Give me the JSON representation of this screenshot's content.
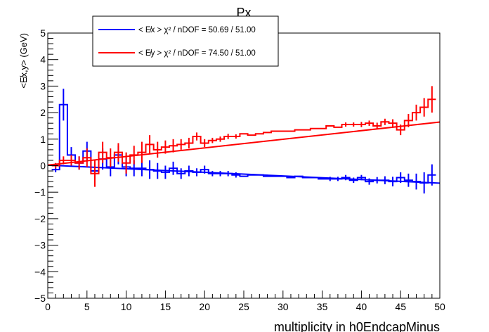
{
  "chart_data": {
    "type": "line",
    "title": "Px",
    "xlabel": "multiplicity in h0EndcapMinus",
    "ylabel": "<E̸x,y> (GeV)",
    "xlim": [
      0,
      50
    ],
    "ylim": [
      -5,
      5
    ],
    "xticks": [
      "0",
      "5",
      "10",
      "15",
      "20",
      "25",
      "30",
      "35",
      "40",
      "45",
      "50"
    ],
    "yticks": [
      "−5",
      "−4",
      "−3",
      "−2",
      "−1",
      "0",
      "1",
      "2",
      "3",
      "4",
      "5"
    ],
    "legend_position": "top-left",
    "series": [
      {
        "name": "< E̸x >  χ² / nDOF = 50.69 / 51.00",
        "color": "#0000ff",
        "fit": {
          "slope": -0.0136,
          "intercept": 0.02
        },
        "x": [
          1,
          2,
          3,
          4,
          5,
          6,
          7,
          8,
          9,
          10,
          11,
          12,
          13,
          14,
          15,
          16,
          17,
          18,
          19,
          20,
          21,
          22,
          23,
          24,
          25,
          26,
          27,
          28,
          29,
          30,
          31,
          32,
          33,
          34,
          35,
          36,
          37,
          38,
          39,
          40,
          41,
          42,
          43,
          44,
          45,
          46,
          47,
          48,
          49
        ],
        "y": [
          -0.15,
          2.3,
          0.4,
          0.1,
          0.55,
          -0.2,
          0.25,
          -0.05,
          0.4,
          -0.05,
          -0.1,
          -0.1,
          -0.15,
          -0.2,
          -0.25,
          -0.1,
          -0.3,
          -0.2,
          -0.25,
          -0.15,
          -0.3,
          -0.3,
          -0.3,
          -0.35,
          -0.4,
          -0.35,
          -0.35,
          -0.4,
          -0.4,
          -0.4,
          -0.45,
          -0.4,
          -0.45,
          -0.45,
          -0.5,
          -0.5,
          -0.5,
          -0.45,
          -0.55,
          -0.45,
          -0.6,
          -0.55,
          -0.55,
          -0.6,
          -0.45,
          -0.55,
          -0.6,
          -0.65,
          -0.35
        ],
        "err": [
          0.1,
          0.6,
          0.3,
          0.25,
          0.35,
          0.3,
          0.4,
          0.35,
          0.35,
          0.35,
          0.3,
          0.3,
          0.35,
          0.3,
          0.25,
          0.25,
          0.2,
          0.2,
          0.15,
          0.15,
          0.1,
          0.1,
          0.1,
          0.1,
          0.05,
          0.05,
          0.05,
          0.05,
          0.05,
          0.05,
          0.05,
          0.05,
          0.05,
          0.05,
          0.05,
          0.08,
          0.08,
          0.1,
          0.1,
          0.1,
          0.12,
          0.12,
          0.15,
          0.18,
          0.2,
          0.25,
          0.3,
          0.4,
          0.4
        ]
      },
      {
        "name": "< E̸y >  χ² / nDOF = 74.50 / 51.00",
        "color": "#ff0000",
        "fit": {
          "slope": 0.0325,
          "intercept": 0.02
        },
        "x": [
          1,
          2,
          3,
          4,
          5,
          6,
          7,
          8,
          9,
          10,
          11,
          12,
          13,
          14,
          15,
          16,
          17,
          18,
          19,
          20,
          21,
          22,
          23,
          24,
          25,
          26,
          27,
          28,
          29,
          30,
          31,
          32,
          33,
          34,
          35,
          36,
          37,
          38,
          39,
          40,
          41,
          42,
          43,
          44,
          45,
          46,
          47,
          48,
          49
        ],
        "y": [
          0.0,
          0.2,
          0.2,
          0.1,
          0.3,
          -0.3,
          0.5,
          0.3,
          0.5,
          0.1,
          0.4,
          0.5,
          0.8,
          0.6,
          0.7,
          0.75,
          0.8,
          0.85,
          1.1,
          0.85,
          0.95,
          1.0,
          1.1,
          1.1,
          1.2,
          1.15,
          1.2,
          1.25,
          1.3,
          1.3,
          1.3,
          1.35,
          1.35,
          1.4,
          1.4,
          1.5,
          1.45,
          1.55,
          1.55,
          1.55,
          1.6,
          1.5,
          1.65,
          1.6,
          1.35,
          1.7,
          2.0,
          2.2,
          2.5
        ],
        "err": [
          0.1,
          0.15,
          0.2,
          0.25,
          0.35,
          0.5,
          0.4,
          0.35,
          0.35,
          0.4,
          0.35,
          0.4,
          0.35,
          0.3,
          0.25,
          0.25,
          0.2,
          0.2,
          0.15,
          0.15,
          0.1,
          0.1,
          0.1,
          0.08,
          0.05,
          0.05,
          0.05,
          0.05,
          0.05,
          0.05,
          0.05,
          0.05,
          0.05,
          0.05,
          0.05,
          0.05,
          0.05,
          0.08,
          0.08,
          0.1,
          0.1,
          0.12,
          0.12,
          0.15,
          0.2,
          0.25,
          0.3,
          0.35,
          0.5
        ]
      }
    ]
  }
}
